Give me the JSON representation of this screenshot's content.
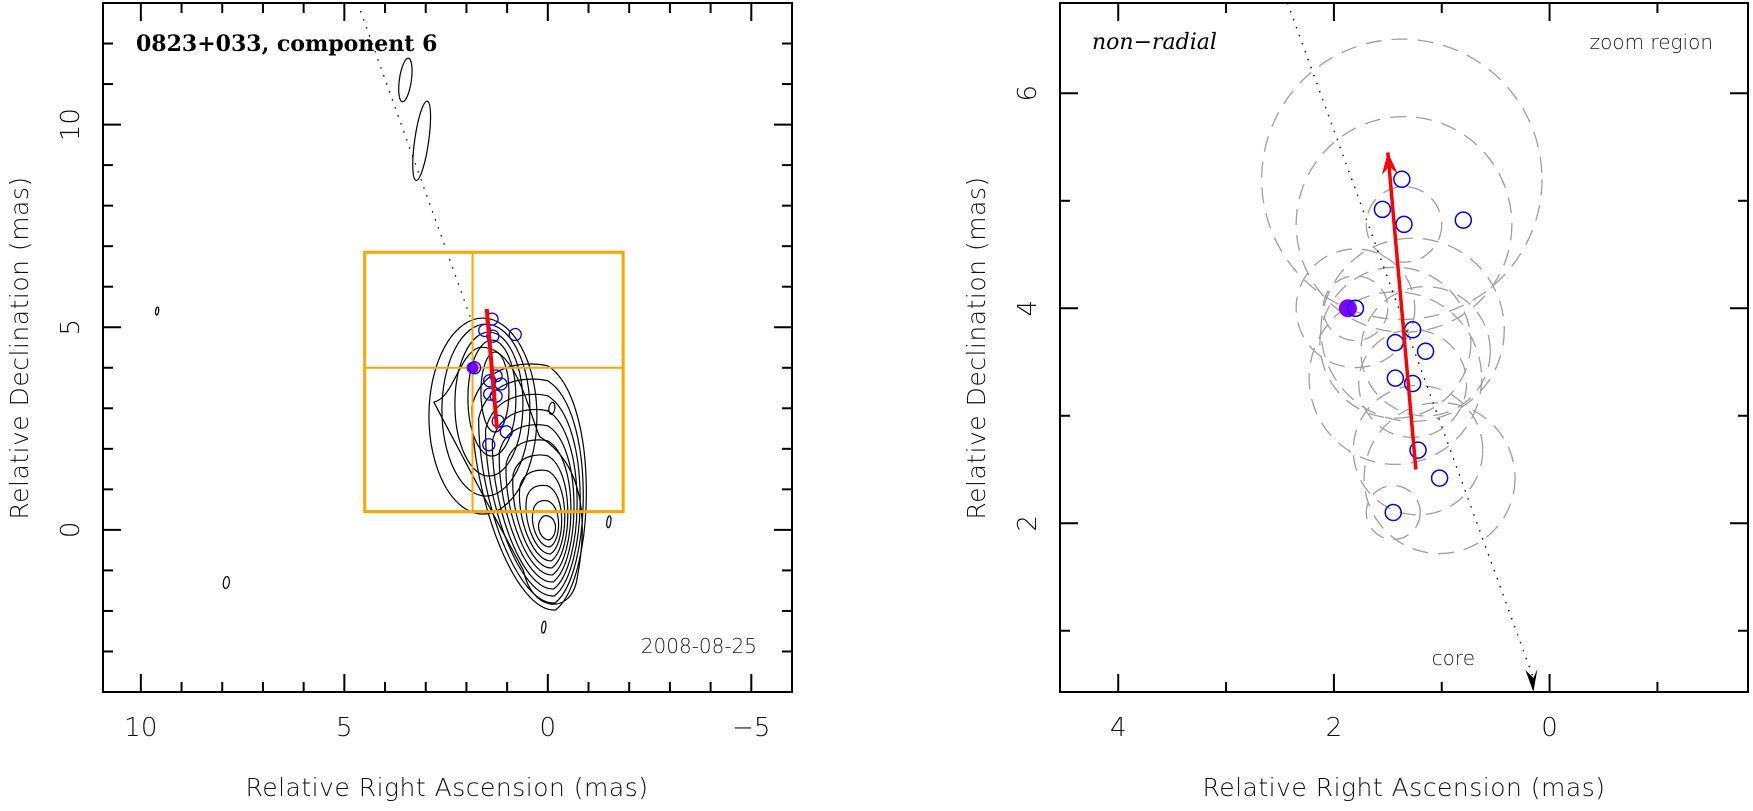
{
  "chart_data": [
    {
      "type": "scatter",
      "panel": "left",
      "title": "0823+033, component 6",
      "annotation": "2008-08-25",
      "xlabel": "Relative Right Ascension (mas)",
      "ylabel": "Relative Declination (mas)",
      "xlim": [
        10.93,
        -6.0
      ],
      "ylim": [
        -4.0,
        13.0
      ],
      "xticks": [
        10,
        5,
        0,
        -5
      ],
      "yticks": [
        0,
        5,
        10
      ],
      "grid": false,
      "colors": {
        "frame": "#000000",
        "contour": "#000000",
        "zoom_box": "#FFA500",
        "arrow": "#FF0000",
        "points": "#0000FF",
        "reference_point": "#8000FF",
        "ridge_line": "#000000"
      },
      "zoom_box": {
        "ra_range": [
          4.5,
          -1.85
        ],
        "dec_range": [
          0.45,
          6.85
        ],
        "crosshair": {
          "ra": 1.85,
          "dec": 4.0
        }
      },
      "reference_point": {
        "ra": 1.85,
        "dec": 4.0
      },
      "arrow": {
        "from": {
          "ra": 1.25,
          "dec": 2.5
        },
        "to": {
          "ra": 1.5,
          "dec": 5.45
        }
      },
      "points": [
        {
          "ra": 1.37,
          "dec": 5.2
        },
        {
          "ra": 1.55,
          "dec": 4.92
        },
        {
          "ra": 1.35,
          "dec": 4.78
        },
        {
          "ra": 0.8,
          "dec": 4.82
        },
        {
          "ra": 1.8,
          "dec": 4.0
        },
        {
          "ra": 1.27,
          "dec": 3.8
        },
        {
          "ra": 1.43,
          "dec": 3.68
        },
        {
          "ra": 1.15,
          "dec": 3.6
        },
        {
          "ra": 1.43,
          "dec": 3.35
        },
        {
          "ra": 1.27,
          "dec": 3.3
        },
        {
          "ra": 1.22,
          "dec": 2.68
        },
        {
          "ra": 1.02,
          "dec": 2.42
        },
        {
          "ra": 1.45,
          "dec": 2.1
        }
      ],
      "ridge_line": {
        "from": {
          "ra": 4.6,
          "dec": 12.8
        },
        "to": {
          "ra": 0.0,
          "dec": 0.0
        }
      },
      "contour_levels": 11
    },
    {
      "type": "scatter",
      "panel": "right",
      "title": "",
      "annotations": [
        "non−radial",
        "zoom region",
        "core"
      ],
      "xlabel": "Relative Right Ascension (mas)",
      "ylabel": "Relative Declination (mas)",
      "xlim": [
        4.54,
        -1.84
      ],
      "ylim": [
        0.43,
        6.84
      ],
      "xticks": [
        4,
        2,
        0
      ],
      "yticks": [
        2,
        4,
        6
      ],
      "grid": false,
      "colors": {
        "frame": "#000000",
        "error_circles": "#A0A0A0",
        "arrow": "#FF0000",
        "points": "#0000FF",
        "reference_point": "#8000FF",
        "ridge_line": "#000000"
      },
      "reference_point": {
        "ra": 1.87,
        "dec": 4.0
      },
      "arrow": {
        "from": {
          "ra": 1.24,
          "dec": 2.5
        },
        "to": {
          "ra": 1.5,
          "dec": 5.45
        }
      },
      "points": [
        {
          "ra": 1.37,
          "dec": 5.2
        },
        {
          "ra": 1.55,
          "dec": 4.92
        },
        {
          "ra": 1.35,
          "dec": 4.78
        },
        {
          "ra": 0.8,
          "dec": 4.82
        },
        {
          "ra": 1.8,
          "dec": 4.0
        },
        {
          "ra": 1.27,
          "dec": 3.8
        },
        {
          "ra": 1.43,
          "dec": 3.68
        },
        {
          "ra": 1.15,
          "dec": 3.6
        },
        {
          "ra": 1.43,
          "dec": 3.35
        },
        {
          "ra": 1.27,
          "dec": 3.3
        },
        {
          "ra": 1.22,
          "dec": 2.68
        },
        {
          "ra": 1.02,
          "dec": 2.42
        },
        {
          "ra": 1.45,
          "dec": 2.1
        }
      ],
      "error_circles": [
        {
          "ra": 1.37,
          "dec": 5.2,
          "r": 1.3
        },
        {
          "ra": 1.35,
          "dec": 4.78,
          "r": 1.0
        },
        {
          "ra": 1.35,
          "dec": 4.78,
          "r": 0.35
        },
        {
          "ra": 1.8,
          "dec": 4.0,
          "r": 0.3
        },
        {
          "ra": 1.8,
          "dec": 4.0,
          "r": 0.55
        },
        {
          "ra": 1.27,
          "dec": 3.8,
          "r": 0.85
        },
        {
          "ra": 1.43,
          "dec": 3.68,
          "r": 0.7
        },
        {
          "ra": 1.15,
          "dec": 3.6,
          "r": 0.6
        },
        {
          "ra": 1.43,
          "dec": 3.35,
          "r": 0.8
        },
        {
          "ra": 1.27,
          "dec": 3.3,
          "r": 0.5
        },
        {
          "ra": 1.22,
          "dec": 2.68,
          "r": 0.6
        },
        {
          "ra": 1.02,
          "dec": 2.42,
          "r": 0.7
        },
        {
          "ra": 1.45,
          "dec": 2.1,
          "r": 0.25
        }
      ],
      "ridge_line": {
        "from": {
          "ra": 2.43,
          "dec": 6.84
        },
        "to": {
          "ra": 0.15,
          "dec": 0.43
        }
      }
    }
  ]
}
